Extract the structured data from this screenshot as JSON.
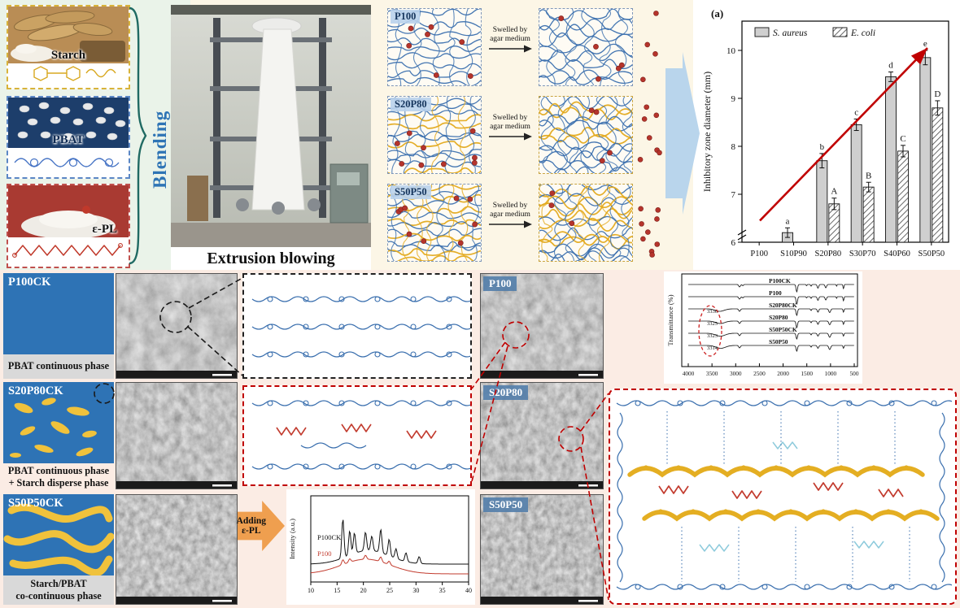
{
  "colors": {
    "accent_blue": "#2e74b5",
    "starch_yellow": "#e4ae22",
    "pbat_blue": "#3a6fae",
    "epl_red": "#c0392b"
  },
  "ingredients": {
    "starch": {
      "label": "Starch"
    },
    "pbat": {
      "label": "PBAT"
    },
    "epl": {
      "label": "ε-PL"
    }
  },
  "blending_label": "Blending",
  "extrusion_label": "Extrusion blowing",
  "networks": {
    "arrow_text": "Swelled by\nagar medium",
    "rows": [
      {
        "label": "P100",
        "blue": 9,
        "yellow": 0,
        "dots": 7,
        "swelled_dots": 5,
        "escaped": 4
      },
      {
        "label": "S20P80",
        "blue": 8,
        "yellow": 4,
        "dots": 9,
        "swelled_dots": 4,
        "escaped": 7
      },
      {
        "label": "S50P50",
        "blue": 7,
        "yellow": 7,
        "dots": 9,
        "swelled_dots": 3,
        "escaped": 9
      }
    ]
  },
  "morphology": {
    "rows": [
      {
        "label": "P100CK",
        "caption": "PBAT continuous phase"
      },
      {
        "label": "S20P80CK",
        "caption": "PBAT continuous phase\n+ Starch disperse phase"
      },
      {
        "label": "S50P50CK",
        "caption": "Starch/PBAT\nco-continuous phase"
      }
    ]
  },
  "adding_epl_label": "Adding\nε-PL",
  "sem_right_labels": [
    "P100",
    "S20P80",
    "S50P50"
  ],
  "chart_data": [
    {
      "id": "inhibition-bar-chart",
      "type": "bar",
      "panel_label": "(a)",
      "ylabel": "Inhibitory zone diameter (mm)",
      "categories": [
        "P100",
        "S10P90",
        "S20P80",
        "S30P70",
        "S40P60",
        "S50P50"
      ],
      "series": [
        {
          "name": "S. aureus",
          "style": "solid-gray",
          "values": [
            null,
            6.2,
            7.7,
            8.45,
            9.45,
            9.85
          ],
          "errors": [
            null,
            0.1,
            0.15,
            0.12,
            0.1,
            0.15
          ],
          "letters": [
            "",
            "a",
            "b",
            "c",
            "d",
            "e"
          ]
        },
        {
          "name": "E. coli",
          "style": "hatched",
          "values": [
            null,
            null,
            6.8,
            7.15,
            7.9,
            8.8
          ],
          "errors": [
            null,
            null,
            0.12,
            0.1,
            0.12,
            0.15
          ],
          "letters": [
            "",
            "",
            "A",
            "B",
            "C",
            "D"
          ]
        }
      ],
      "ylim": [
        6,
        10
      ],
      "yticks": [
        6,
        7,
        8,
        9,
        10
      ],
      "axis_break": true,
      "trend_arrow_color": "#c00000",
      "legend_position": "top"
    },
    {
      "id": "xrd-line-chart",
      "type": "line",
      "ylabel": "Intensity (a.u.)",
      "xlim": [
        10,
        40
      ],
      "xticks": [
        10,
        15,
        20,
        25,
        30,
        35,
        40
      ],
      "series": [
        {
          "name": "P100CK",
          "color": "#111111",
          "baseline": 0.3,
          "broad_hump": [
            21,
            5.5,
            0.28
          ],
          "peaks": [
            [
              16.1,
              0.8
            ],
            [
              17.4,
              0.5
            ],
            [
              18.3,
              0.42
            ],
            [
              20.4,
              0.38
            ],
            [
              21.6,
              0.3
            ],
            [
              23.3,
              0.48
            ],
            [
              24.9,
              0.34
            ],
            [
              26.2,
              0.2
            ],
            [
              28.1,
              0.18
            ],
            [
              30.6,
              0.14
            ]
          ]
        },
        {
          "name": "P100",
          "color": "#c23b2e",
          "baseline": 0.1,
          "broad_hump": [
            20.5,
            6.5,
            0.3
          ],
          "peaks": [
            [
              16.1,
              0.1
            ],
            [
              17.4,
              0.07
            ],
            [
              20.4,
              0.08
            ],
            [
              23.3,
              0.1
            ],
            [
              24.9,
              0.07
            ]
          ]
        }
      ]
    },
    {
      "id": "ftir-line-chart",
      "type": "line",
      "ylabel": "Transmittance (%)",
      "xlim": [
        4000,
        500
      ],
      "xticks": [
        4000,
        3500,
        3000,
        2500,
        2000,
        1500,
        1000,
        500
      ],
      "curves": [
        {
          "name": "P100CK",
          "oh_band": null,
          "dips": [
            [
              2918,
              25,
              3
            ],
            [
              2850,
              18,
              1.5
            ],
            [
              1712,
              22,
              9
            ],
            [
              1505,
              12,
              1.5
            ],
            [
              1410,
              14,
              2
            ],
            [
              1265,
              22,
              4.5
            ],
            [
              1100,
              22,
              4
            ],
            [
              873,
              10,
              2
            ],
            [
              727,
              14,
              5
            ]
          ]
        },
        {
          "name": "P100",
          "oh_band": null,
          "dips": [
            [
              2918,
              25,
              3
            ],
            [
              2850,
              18,
              1.5
            ],
            [
              1712,
              22,
              9
            ],
            [
              1505,
              12,
              1.5
            ],
            [
              1410,
              14,
              2
            ],
            [
              1265,
              22,
              4.5
            ],
            [
              1100,
              22,
              4
            ],
            [
              873,
              10,
              2
            ],
            [
              727,
              14,
              5
            ]
          ]
        },
        {
          "name": "S20P80CK",
          "oh_band": "3336",
          "dips": [
            [
              3336,
              130,
              3
            ],
            [
              2918,
              25,
              3
            ],
            [
              1712,
              22,
              8
            ],
            [
              1410,
              14,
              2
            ],
            [
              1265,
              22,
              4
            ],
            [
              1018,
              26,
              4.5
            ],
            [
              727,
              14,
              4
            ]
          ]
        },
        {
          "name": "S20P80",
          "oh_band": "3325",
          "dips": [
            [
              3325,
              130,
              3
            ],
            [
              2918,
              25,
              3
            ],
            [
              1712,
              22,
              8
            ],
            [
              1410,
              14,
              2
            ],
            [
              1265,
              22,
              4
            ],
            [
              1018,
              26,
              4.5
            ],
            [
              727,
              14,
              4
            ]
          ]
        },
        {
          "name": "S50P50CK",
          "oh_band": "3323",
          "dips": [
            [
              3323,
              140,
              3.5
            ],
            [
              2918,
              25,
              3
            ],
            [
              1712,
              22,
              7
            ],
            [
              1410,
              14,
              2
            ],
            [
              1265,
              22,
              3.5
            ],
            [
              1018,
              28,
              5
            ],
            [
              727,
              14,
              3.5
            ]
          ]
        },
        {
          "name": "S50P50",
          "oh_band": "3314",
          "dips": [
            [
              3314,
              140,
              3.5
            ],
            [
              2918,
              25,
              3
            ],
            [
              1712,
              22,
              7
            ],
            [
              1410,
              14,
              2
            ],
            [
              1265,
              22,
              3.5
            ],
            [
              1018,
              28,
              5
            ],
            [
              727,
              14,
              3.5
            ]
          ]
        }
      ],
      "annotations": [
        "3336",
        "3325",
        "3323",
        "3314"
      ]
    }
  ]
}
